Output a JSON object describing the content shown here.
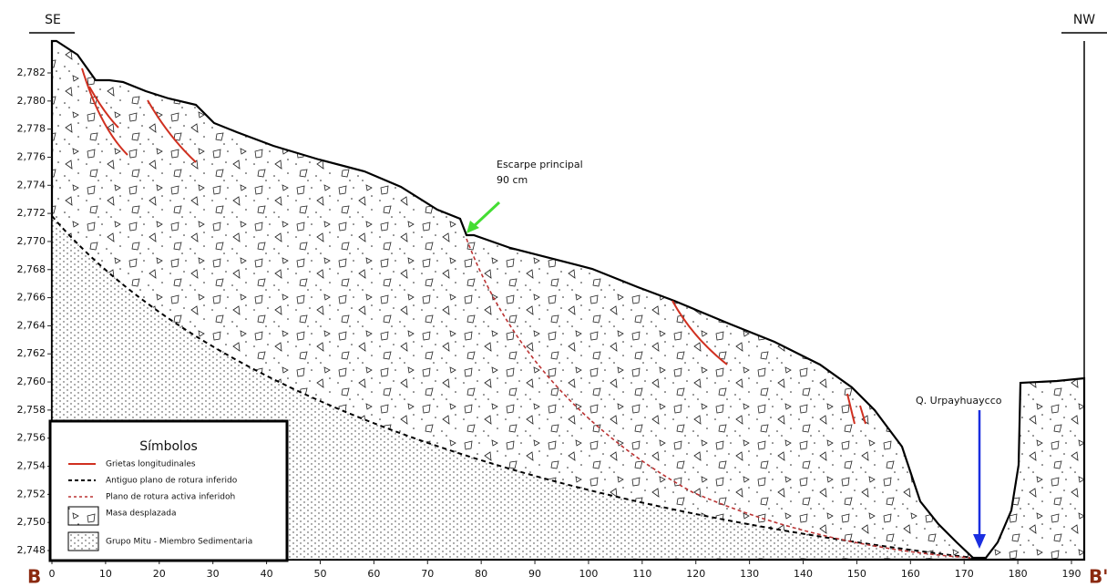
{
  "header": {
    "left": "SE",
    "right": "NW"
  },
  "section": {
    "start": "B",
    "end": "B'"
  },
  "axes": {
    "yticks": [
      {
        "value": 2748,
        "label": "2,748"
      },
      {
        "value": 2750,
        "label": "2,750"
      },
      {
        "value": 2752,
        "label": "2,752"
      },
      {
        "value": 2754,
        "label": "2,754"
      },
      {
        "value": 2756,
        "label": "2,756"
      },
      {
        "value": 2758,
        "label": "2,758"
      },
      {
        "value": 2760,
        "label": "2,760"
      },
      {
        "value": 2762,
        "label": "2,762"
      },
      {
        "value": 2764,
        "label": "2,764"
      },
      {
        "value": 2766,
        "label": "2,766"
      },
      {
        "value": 2768,
        "label": "2,768"
      },
      {
        "value": 2770,
        "label": "2,770"
      },
      {
        "value": 2772,
        "label": "2,772"
      },
      {
        "value": 2774,
        "label": "2,774"
      },
      {
        "value": 2776,
        "label": "2,776"
      },
      {
        "value": 2778,
        "label": "2,778"
      },
      {
        "value": 2780,
        "label": "2,780"
      },
      {
        "value": 2782,
        "label": "2,782"
      }
    ],
    "xticks": [
      0,
      10,
      20,
      30,
      40,
      50,
      60,
      70,
      80,
      90,
      100,
      110,
      120,
      130,
      140,
      150,
      160,
      170,
      180,
      190
    ]
  },
  "annotations": {
    "scarp": {
      "title": "Escarpe principal",
      "depth": "90 cm"
    },
    "stream": "Q. Urpayhuaycco"
  },
  "legend": {
    "title": "Símbolos",
    "items": [
      "Grietas longitudinales",
      "Antiguo plano de rotura inferido",
      "Plano de rotura activa inferidoh",
      "Masa desplazada",
      "Grupo Mitu - Miembro Sedimentaria"
    ]
  }
}
